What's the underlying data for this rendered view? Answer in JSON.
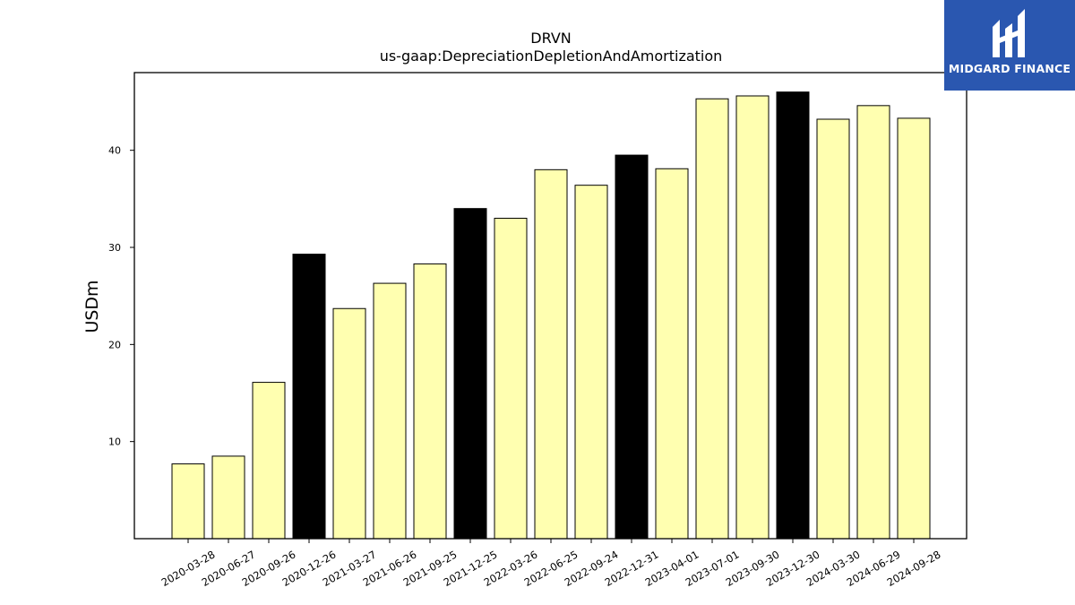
{
  "logo": {
    "text": "MIDGARD FINANCE",
    "background": "#2a57b0"
  },
  "chart_data": {
    "type": "bar",
    "title": "DRVN",
    "subtitle": "us-gaap:DepreciationDepletionAndAmortization",
    "xlabel": "",
    "ylabel": "USDm",
    "ylim": [
      0,
      48
    ],
    "yticks": [
      10,
      20,
      30,
      40
    ],
    "grid": false,
    "categories": [
      "2020-03-28",
      "2020-06-27",
      "2020-09-26",
      "2020-12-26",
      "2021-03-27",
      "2021-06-26",
      "2021-09-25",
      "2021-12-25",
      "2022-03-26",
      "2022-06-25",
      "2022-09-24",
      "2022-12-31",
      "2023-04-01",
      "2023-07-01",
      "2023-09-30",
      "2023-12-30",
      "2024-03-30",
      "2024-06-29",
      "2024-09-28"
    ],
    "values": [
      7.7,
      8.5,
      16.1,
      29.3,
      23.7,
      26.3,
      28.3,
      34.0,
      33.0,
      38.0,
      36.4,
      39.5,
      38.1,
      45.3,
      45.6,
      46.0,
      43.2,
      44.6,
      43.3
    ],
    "highlight": [
      false,
      false,
      false,
      true,
      false,
      false,
      false,
      true,
      false,
      false,
      false,
      true,
      false,
      false,
      false,
      true,
      false,
      false,
      false
    ],
    "colors": {
      "bar": "#ffffb0",
      "highlight": "#000000",
      "edge": "#000000"
    }
  }
}
